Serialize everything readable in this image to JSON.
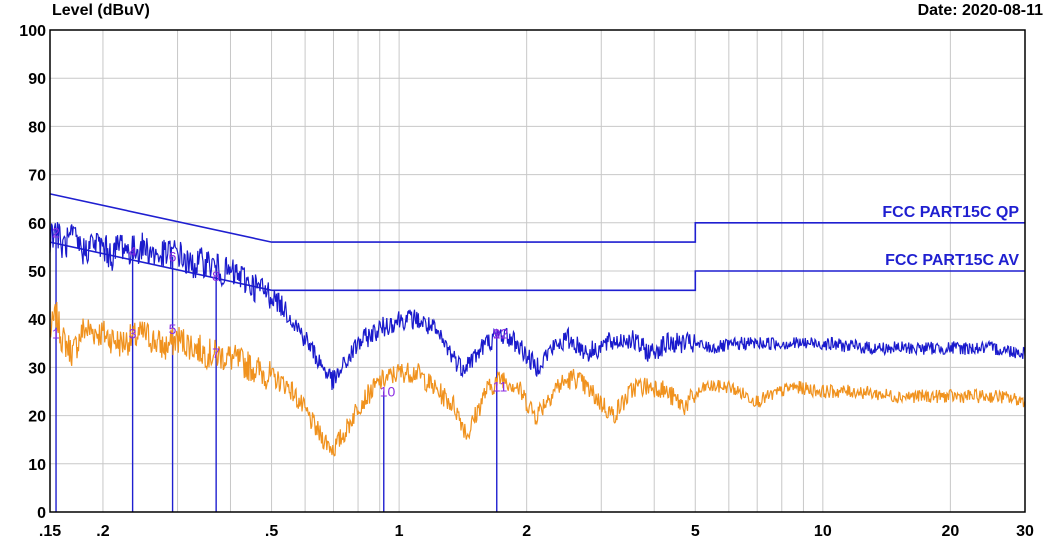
{
  "header": {
    "ylabel": "Level (dBuV)",
    "date": "Date: 2020-08-11"
  },
  "colors": {
    "peak": "#1a1acc",
    "average": "#f0921e",
    "limit": "#1f1fd0",
    "marker_line": "#1f1fd0",
    "marker_label": "#8a2be2",
    "grid": "#c8c8c8"
  },
  "chart_data": {
    "type": "line",
    "x_scale": "log",
    "xlim": [
      0.15,
      30
    ],
    "ylim": [
      0,
      100
    ],
    "grid": true,
    "ylabel": "Level (dBuV)",
    "xlabel": "",
    "x_ticks": [
      {
        "value": 0.15,
        "label": ".15"
      },
      {
        "value": 0.2,
        "label": ".2"
      },
      {
        "value": 0.5,
        "label": ".5"
      },
      {
        "value": 1,
        "label": "1"
      },
      {
        "value": 2,
        "label": "2"
      },
      {
        "value": 5,
        "label": "5"
      },
      {
        "value": 10,
        "label": "10"
      },
      {
        "value": 20,
        "label": "20"
      },
      {
        "value": 30,
        "label": "30"
      }
    ],
    "x_minor_grid": [
      0.3,
      0.4,
      0.6,
      0.7,
      0.8,
      0.9,
      3,
      4,
      6,
      7,
      8,
      9
    ],
    "y_ticks": [
      0,
      10,
      20,
      30,
      40,
      50,
      60,
      70,
      80,
      90,
      100
    ],
    "limits": [
      {
        "name": "FCC PART15C QP",
        "points": [
          [
            0.15,
            66
          ],
          [
            0.5,
            56
          ],
          [
            5,
            56
          ],
          [
            5,
            60
          ],
          [
            30,
            60
          ]
        ]
      },
      {
        "name": "FCC PART15C AV",
        "points": [
          [
            0.15,
            56
          ],
          [
            0.5,
            46
          ],
          [
            5,
            46
          ],
          [
            5,
            50
          ],
          [
            30,
            50
          ]
        ]
      }
    ],
    "series": [
      {
        "role": "peak",
        "points": [
          [
            0.15,
            57
          ],
          [
            0.155,
            59
          ],
          [
            0.16,
            55
          ],
          [
            0.17,
            57
          ],
          [
            0.18,
            54
          ],
          [
            0.19,
            56
          ],
          [
            0.2,
            55
          ],
          [
            0.21,
            53
          ],
          [
            0.22,
            56
          ],
          [
            0.23,
            54
          ],
          [
            0.25,
            55
          ],
          [
            0.27,
            53
          ],
          [
            0.3,
            54
          ],
          [
            0.32,
            51
          ],
          [
            0.35,
            52
          ],
          [
            0.38,
            50
          ],
          [
            0.42,
            49
          ],
          [
            0.45,
            47
          ],
          [
            0.5,
            45
          ],
          [
            0.55,
            41
          ],
          [
            0.6,
            36
          ],
          [
            0.65,
            31
          ],
          [
            0.7,
            27
          ],
          [
            0.75,
            31
          ],
          [
            0.8,
            35
          ],
          [
            0.9,
            38
          ],
          [
            1.0,
            40
          ],
          [
            1.1,
            40
          ],
          [
            1.2,
            38
          ],
          [
            1.3,
            34
          ],
          [
            1.4,
            30
          ],
          [
            1.5,
            32
          ],
          [
            1.6,
            35
          ],
          [
            1.75,
            37
          ],
          [
            1.9,
            35
          ],
          [
            2.1,
            30
          ],
          [
            2.3,
            34
          ],
          [
            2.5,
            36
          ],
          [
            2.8,
            33
          ],
          [
            3.1,
            35
          ],
          [
            3.5,
            36
          ],
          [
            3.9,
            33
          ],
          [
            4.3,
            35
          ],
          [
            4.8,
            35
          ],
          [
            5.5,
            34
          ],
          [
            6.5,
            35
          ],
          [
            8,
            35
          ],
          [
            10,
            35
          ],
          [
            13,
            34
          ],
          [
            16,
            34
          ],
          [
            20,
            34
          ],
          [
            25,
            34
          ],
          [
            30,
            33
          ]
        ]
      },
      {
        "role": "average",
        "points": [
          [
            0.15,
            37
          ],
          [
            0.155,
            41
          ],
          [
            0.16,
            36
          ],
          [
            0.17,
            33
          ],
          [
            0.18,
            38
          ],
          [
            0.2,
            37
          ],
          [
            0.22,
            35
          ],
          [
            0.25,
            37
          ],
          [
            0.28,
            34
          ],
          [
            0.3,
            36
          ],
          [
            0.35,
            33
          ],
          [
            0.4,
            32
          ],
          [
            0.45,
            30
          ],
          [
            0.5,
            28
          ],
          [
            0.55,
            26
          ],
          [
            0.6,
            21
          ],
          [
            0.65,
            16
          ],
          [
            0.7,
            13
          ],
          [
            0.75,
            17
          ],
          [
            0.8,
            22
          ],
          [
            0.9,
            27
          ],
          [
            1.0,
            29
          ],
          [
            1.1,
            29
          ],
          [
            1.2,
            26
          ],
          [
            1.35,
            22
          ],
          [
            1.45,
            16
          ],
          [
            1.6,
            25
          ],
          [
            1.75,
            28
          ],
          [
            1.9,
            26
          ],
          [
            2.1,
            20
          ],
          [
            2.35,
            26
          ],
          [
            2.6,
            28
          ],
          [
            2.9,
            24
          ],
          [
            3.2,
            20
          ],
          [
            3.6,
            26
          ],
          [
            4.1,
            26
          ],
          [
            4.7,
            22
          ],
          [
            5.3,
            26
          ],
          [
            6,
            26
          ],
          [
            7,
            23
          ],
          [
            8.5,
            26
          ],
          [
            10,
            25
          ],
          [
            12,
            25
          ],
          [
            15,
            24
          ],
          [
            18,
            24
          ],
          [
            22,
            24
          ],
          [
            26,
            24
          ],
          [
            30,
            23
          ]
        ]
      }
    ],
    "markers": [
      {
        "label": "1",
        "x": 0.155,
        "y": 37
      },
      {
        "label": "2",
        "x": 0.155,
        "y": 58
      },
      {
        "label": "3",
        "x": 0.235,
        "y": 37
      },
      {
        "label": "4",
        "x": 0.235,
        "y": 54
      },
      {
        "label": "5",
        "x": 0.292,
        "y": 38
      },
      {
        "label": "6",
        "x": 0.292,
        "y": 53
      },
      {
        "label": "7",
        "x": 0.37,
        "y": 33
      },
      {
        "label": "8",
        "x": 0.37,
        "y": 49
      },
      {
        "label": "9",
        "x": 1.7,
        "y": 37
      },
      {
        "label": "10",
        "x": 0.92,
        "y": 25
      },
      {
        "label": "11",
        "x": 1.7,
        "y": 26
      },
      {
        "label": "12",
        "x": 1.7,
        "y": 37
      }
    ]
  }
}
